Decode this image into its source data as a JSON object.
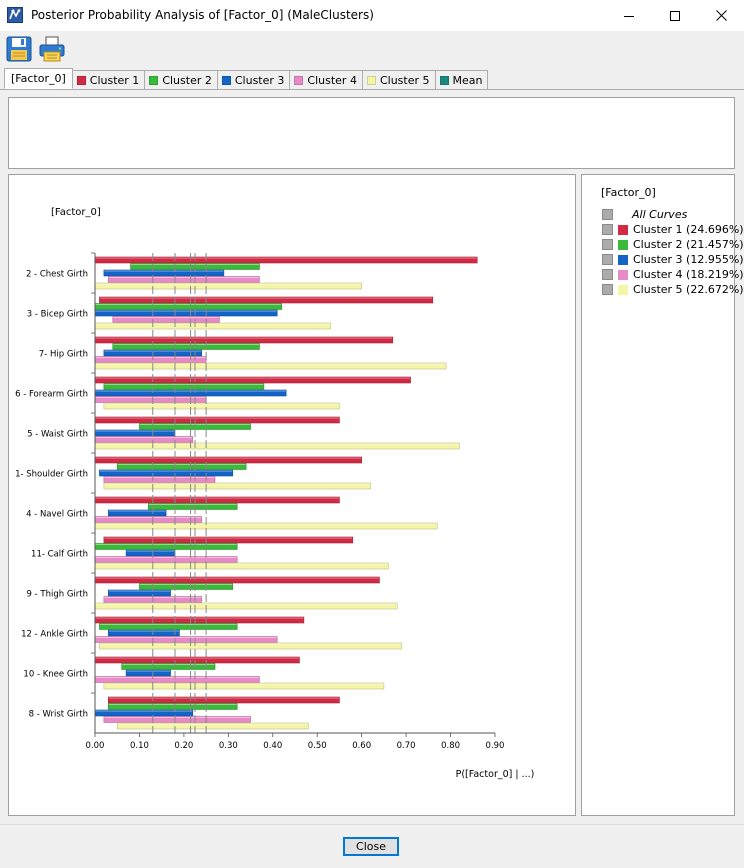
{
  "window": {
    "title": "Posterior Probability Analysis of [Factor_0] (MaleClusters)"
  },
  "toolbar": {
    "save_icon": "floppy-disk-icon",
    "print_icon": "printer-icon"
  },
  "tabs": [
    {
      "label": "[Factor_0]",
      "color": null,
      "active": true
    },
    {
      "label": "Cluster 1",
      "color": "#d22a45"
    },
    {
      "label": "Cluster 2",
      "color": "#3ab93a"
    },
    {
      "label": "Cluster 3",
      "color": "#1464c8"
    },
    {
      "label": "Cluster 4",
      "color": "#e88ac8"
    },
    {
      "label": "Cluster 5",
      "color": "#f5f5a8"
    },
    {
      "label": "Mean",
      "color": "#1a8a80"
    }
  ],
  "legend": {
    "title": "[Factor_0]",
    "all_label": "All Curves",
    "items": [
      {
        "label": "Cluster 1 (24.696%)",
        "color": "#d22a45"
      },
      {
        "label": "Cluster 2 (21.457%)",
        "color": "#3ab93a"
      },
      {
        "label": "Cluster 3 (12.955%)",
        "color": "#1464c8"
      },
      {
        "label": "Cluster 4 (18.219%)",
        "color": "#e88ac8"
      },
      {
        "label": "Cluster 5 (22.672%)",
        "color": "#f5f5a8"
      }
    ]
  },
  "chart_data": {
    "type": "bar",
    "orientation": "horizontal",
    "title": "[Factor_0]",
    "xlabel": "P([Factor_0] | ...)",
    "xlim": [
      0,
      0.9
    ],
    "xticks": [
      "0.00",
      "0.10",
      "0.20",
      "0.30",
      "0.40",
      "0.50",
      "0.60",
      "0.70",
      "0.80",
      "0.90"
    ],
    "categories": [
      "2 - Chest Girth",
      "3 - Bicep Girth",
      "7- Hip Girth",
      "6 - Forearm Girth",
      "5 - Waist Girth",
      "1- Shoulder Girth",
      "4 - Navel Girth",
      "11- Calf Girth",
      "9 - Thigh Girth",
      "12 - Ankle Girth",
      "10 - Knee Girth",
      "8 - Wrist Girth"
    ],
    "series": [
      {
        "name": "Cluster 1",
        "color": "#d22a45",
        "start": [
          0.0,
          0.01,
          0.0,
          0.0,
          0.0,
          0.0,
          0.0,
          0.02,
          0.0,
          0.0,
          0.0,
          0.03
        ],
        "values": [
          0.86,
          0.76,
          0.67,
          0.71,
          0.55,
          0.6,
          0.55,
          0.58,
          0.64,
          0.47,
          0.46,
          0.55
        ]
      },
      {
        "name": "Cluster 2",
        "color": "#3ab93a",
        "start": [
          0.08,
          0.0,
          0.04,
          0.02,
          0.1,
          0.05,
          0.12,
          0.0,
          0.1,
          0.01,
          0.06,
          0.03
        ],
        "values": [
          0.37,
          0.42,
          0.37,
          0.38,
          0.35,
          0.34,
          0.32,
          0.32,
          0.31,
          0.32,
          0.27,
          0.32
        ]
      },
      {
        "name": "Cluster 3",
        "color": "#1464c8",
        "start": [
          0.02,
          0.0,
          0.02,
          0.0,
          0.0,
          0.01,
          0.03,
          0.07,
          0.03,
          0.03,
          0.07,
          0.0
        ],
        "values": [
          0.29,
          0.41,
          0.24,
          0.43,
          0.18,
          0.31,
          0.16,
          0.18,
          0.17,
          0.19,
          0.17,
          0.22
        ]
      },
      {
        "name": "Cluster 4",
        "color": "#e88ac8",
        "start": [
          0.03,
          0.04,
          0.0,
          0.0,
          0.0,
          0.02,
          0.0,
          0.0,
          0.02,
          0.0,
          0.0,
          0.02
        ],
        "values": [
          0.37,
          0.28,
          0.25,
          0.25,
          0.22,
          0.27,
          0.24,
          0.32,
          0.24,
          0.41,
          0.37,
          0.35
        ]
      },
      {
        "name": "Cluster 5",
        "color": "#f5f5a8",
        "start": [
          0.0,
          0.0,
          0.0,
          0.02,
          0.0,
          0.02,
          0.0,
          0.0,
          0.0,
          0.01,
          0.02,
          0.05
        ],
        "values": [
          0.6,
          0.53,
          0.79,
          0.55,
          0.82,
          0.62,
          0.77,
          0.66,
          0.68,
          0.69,
          0.65,
          0.48
        ]
      }
    ],
    "reference_lines": [
      0.13,
      0.18,
      0.215,
      0.225,
      0.25
    ],
    "grid": false,
    "legend": "right-panel"
  },
  "footer": {
    "close_label": "Close"
  }
}
